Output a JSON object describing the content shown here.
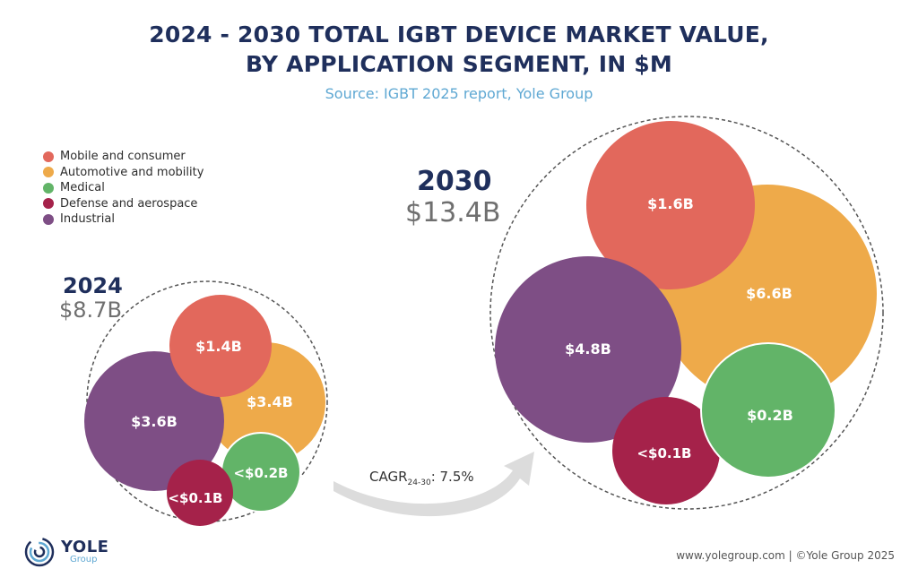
{
  "title_line1": "2024 - 2030 TOTAL IGBT DEVICE MARKET VALUE,",
  "title_line2": "BY APPLICATION SEGMENT, IN $M",
  "source": "Source: IGBT 2025 report, Yole Group",
  "legend": [
    {
      "label": "Mobile and consumer",
      "color": "#e2685c"
    },
    {
      "label": "Automotive and mobility",
      "color": "#eeaa4a"
    },
    {
      "label": "Medical",
      "color": "#62b468"
    },
    {
      "label": "Defense and aerospace",
      "color": "#a5224a"
    },
    {
      "label": "Industrial",
      "color": "#7e4e85"
    }
  ],
  "cagr": {
    "prefix": "CAGR",
    "sub": "24-30",
    "suffix": ": 7.5%"
  },
  "footer": "www.yolegroup.com | ©Yole Group 2025",
  "logo": {
    "name": "YOLE",
    "sub": "Group",
    "icon": "yole-swirl-icon"
  },
  "chart_data": {
    "type": "bubble",
    "title": "2024 - 2030 TOTAL IGBT DEVICE MARKET VALUE, BY APPLICATION SEGMENT, IN $M",
    "groups": [
      {
        "year": "2024",
        "total": "$8.7B",
        "bubbles": [
          {
            "segment": "Industrial",
            "label": "$3.6B",
            "value": 3.6
          },
          {
            "segment": "Automotive and mobility",
            "label": "$3.4B",
            "value": 3.4
          },
          {
            "segment": "Mobile and consumer",
            "label": "$1.4B",
            "value": 1.4
          },
          {
            "segment": "Medical",
            "label": "<$0.2B",
            "value": 0.2
          },
          {
            "segment": "Defense and aerospace",
            "label": "<$0.1B",
            "value": 0.1
          }
        ]
      },
      {
        "year": "2030",
        "total": "$13.4B",
        "bubbles": [
          {
            "segment": "Automotive and mobility",
            "label": "$6.6B",
            "value": 6.6
          },
          {
            "segment": "Industrial",
            "label": "$4.8B",
            "value": 4.8
          },
          {
            "segment": "Mobile and consumer",
            "label": "$1.6B",
            "value": 1.6
          },
          {
            "segment": "Medical",
            "label": "$0.2B",
            "value": 0.2
          },
          {
            "segment": "Defense and aerospace",
            "label": "<$0.1B",
            "value": 0.1
          }
        ]
      }
    ]
  }
}
